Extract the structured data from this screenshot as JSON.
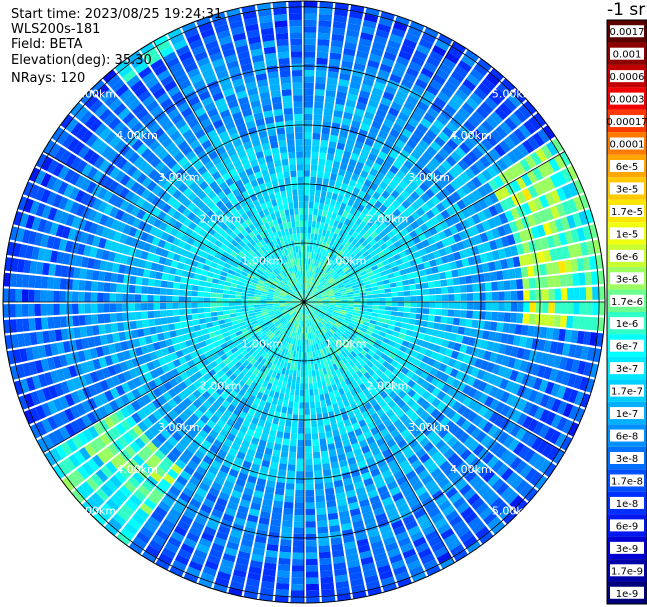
{
  "header": {
    "start_time": "Start time: 2023/08/25 19:24:31",
    "instrument": "WLS200s-181",
    "field": "Field: BETA",
    "elevation": "Elevation(deg): 35.30",
    "nrays": "NRays: 120"
  },
  "colorbar": {
    "unit_label": "-1 sr",
    "ticks": [
      "0.0017",
      "0.001",
      "0.0006",
      "0.0003",
      "0.00017",
      "0.0001",
      "6e-5",
      "3e-5",
      "1.7e-5",
      "1e-5",
      "6e-6",
      "3e-6",
      "1.7e-6",
      "1e-6",
      "6e-7",
      "3e-7",
      "1.7e-7",
      "1e-7",
      "6e-8",
      "3e-8",
      "1.7e-8",
      "1e-8",
      "6e-9",
      "3e-9",
      "1.7e-9",
      "1e-9"
    ],
    "colors": [
      "#5a0000",
      "#8c0000",
      "#c00000",
      "#f00000",
      "#ff3a00",
      "#ff7a00",
      "#ffa600",
      "#ffc800",
      "#ffe600",
      "#f0ff10",
      "#c8ff30",
      "#9cff60",
      "#6cff90",
      "#30ffc8",
      "#00ffff",
      "#00e8ff",
      "#00d0ff",
      "#00b0ff",
      "#0090ff",
      "#0070ff",
      "#0050ff",
      "#0030ff",
      "#0018f0",
      "#0000d0",
      "#0000a8",
      "#00007a"
    ]
  },
  "chart_data": {
    "type": "heatmap",
    "projection": "polar-ppi",
    "n_rays": 120,
    "range_rings_km": [
      1,
      2,
      3,
      4,
      5
    ],
    "ring_labels": [
      "1.00km",
      "2.00km",
      "3.00km",
      "4.00km",
      "5.00km"
    ],
    "max_range_km": 5.1,
    "radial_spokes_deg": [
      0,
      30,
      60,
      90,
      120,
      150,
      180,
      210,
      240,
      270,
      300,
      330
    ],
    "color_scale": "log",
    "value_range": [
      1e-09,
      0.0017
    ],
    "features": [
      {
        "note": "enhanced band near 60-90 deg azimuth at 4-5 km",
        "level": "1e-5"
      },
      {
        "note": "enhanced band near 220-235 deg azimuth at 3.5-5 km",
        "level": "3e-6"
      }
    ]
  }
}
